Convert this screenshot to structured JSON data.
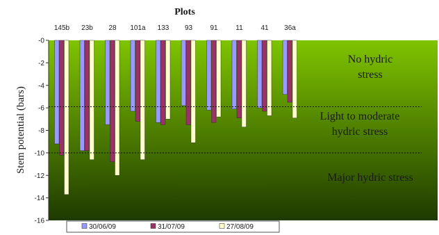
{
  "chart_data": {
    "type": "bar",
    "title": "Plots",
    "ylabel": "Stem potential (bars)",
    "xlabel": "",
    "categories": [
      "145b",
      "23b",
      "28",
      "101a",
      "133",
      "93",
      "91",
      "11",
      "41",
      "36a"
    ],
    "ylim": [
      -16,
      0
    ],
    "yticks": [
      "-0",
      "-2",
      "-4",
      "-6",
      "-8",
      "-10",
      "-12",
      "-14",
      "-16"
    ],
    "series": [
      {
        "name": "30/06/09",
        "color": "#9999ff",
        "values": [
          -9.2,
          -9.8,
          -7.5,
          -6.3,
          -7.3,
          -5.8,
          -6.2,
          -6.1,
          -6.0,
          -4.8
        ]
      },
      {
        "name": "31/07/09",
        "color": "#993366",
        "values": [
          -10.2,
          -9.8,
          -10.8,
          -7.2,
          -7.5,
          -7.5,
          -7.3,
          -6.9,
          -6.3,
          -5.5
        ]
      },
      {
        "name": "27/08/09",
        "color": "#ffffcc",
        "values": [
          -13.7,
          -10.6,
          -12.0,
          -10.6,
          -7.0,
          -9.1,
          -6.8,
          -7.7,
          -6.7,
          -6.9
        ]
      }
    ],
    "thresholds": [
      -5.9,
      -10.0
    ],
    "annotations": [
      [
        "No hydric",
        "stress"
      ],
      [
        "Light to moderate",
        "hydric stress"
      ],
      [
        "Major hydric stress"
      ]
    ],
    "legend": "bottom",
    "background_gradient": [
      "#7fc400",
      "#1e3a00"
    ]
  }
}
